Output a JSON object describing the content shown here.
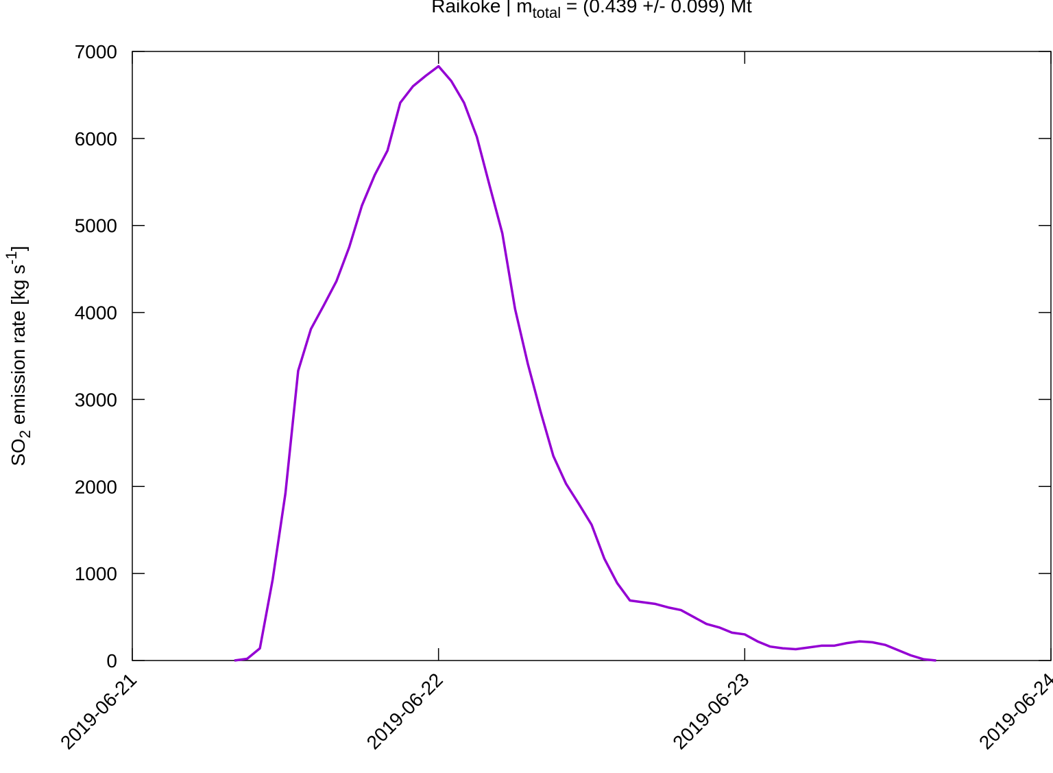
{
  "chart_data": {
    "type": "line",
    "title": [
      "Raikoke | m",
      "total",
      " = (0.439 +/- 0.099) Mt"
    ],
    "y_label": [
      "SO",
      "2",
      " emission rate [kg s",
      "-1",
      "]"
    ],
    "x": [
      8,
      9,
      10,
      11,
      12,
      13,
      14,
      15,
      16,
      17,
      18,
      19,
      20,
      21,
      22,
      23,
      24,
      25,
      26,
      27,
      28,
      29,
      30,
      31,
      32,
      33,
      34,
      35,
      36,
      37,
      38,
      39,
      40,
      41,
      42,
      43,
      44,
      45,
      46,
      47,
      48,
      49,
      50,
      51,
      52,
      53,
      54,
      55,
      56,
      57,
      58,
      59,
      60,
      61,
      62,
      63
    ],
    "series": [
      {
        "name": "SO2 emission rate",
        "color": "#9400d3",
        "values": [
          0,
          20,
          140,
          930,
          1920,
          3330,
          3810,
          4080,
          4360,
          4750,
          5230,
          5580,
          5860,
          6410,
          6600,
          6720,
          6830,
          6660,
          6410,
          6020,
          5460,
          4910,
          4040,
          3410,
          2860,
          2350,
          2030,
          1800,
          1560,
          1170,
          890,
          690,
          670,
          650,
          610,
          580,
          500,
          420,
          380,
          320,
          300,
          220,
          160,
          140,
          130,
          150,
          170,
          170,
          200,
          220,
          210,
          180,
          120,
          60,
          15,
          0
        ]
      }
    ],
    "xlim": [
      0,
      72
    ],
    "xticks": [
      {
        "value": 0,
        "label": "2019-06-21"
      },
      {
        "value": 24,
        "label": "2019-06-22"
      },
      {
        "value": 48,
        "label": "2019-06-23"
      },
      {
        "value": 72,
        "label": "2019-06-24"
      }
    ],
    "ylim": [
      0,
      7000
    ],
    "yticks": [
      0,
      1000,
      2000,
      3000,
      4000,
      5000,
      6000,
      7000
    ]
  }
}
